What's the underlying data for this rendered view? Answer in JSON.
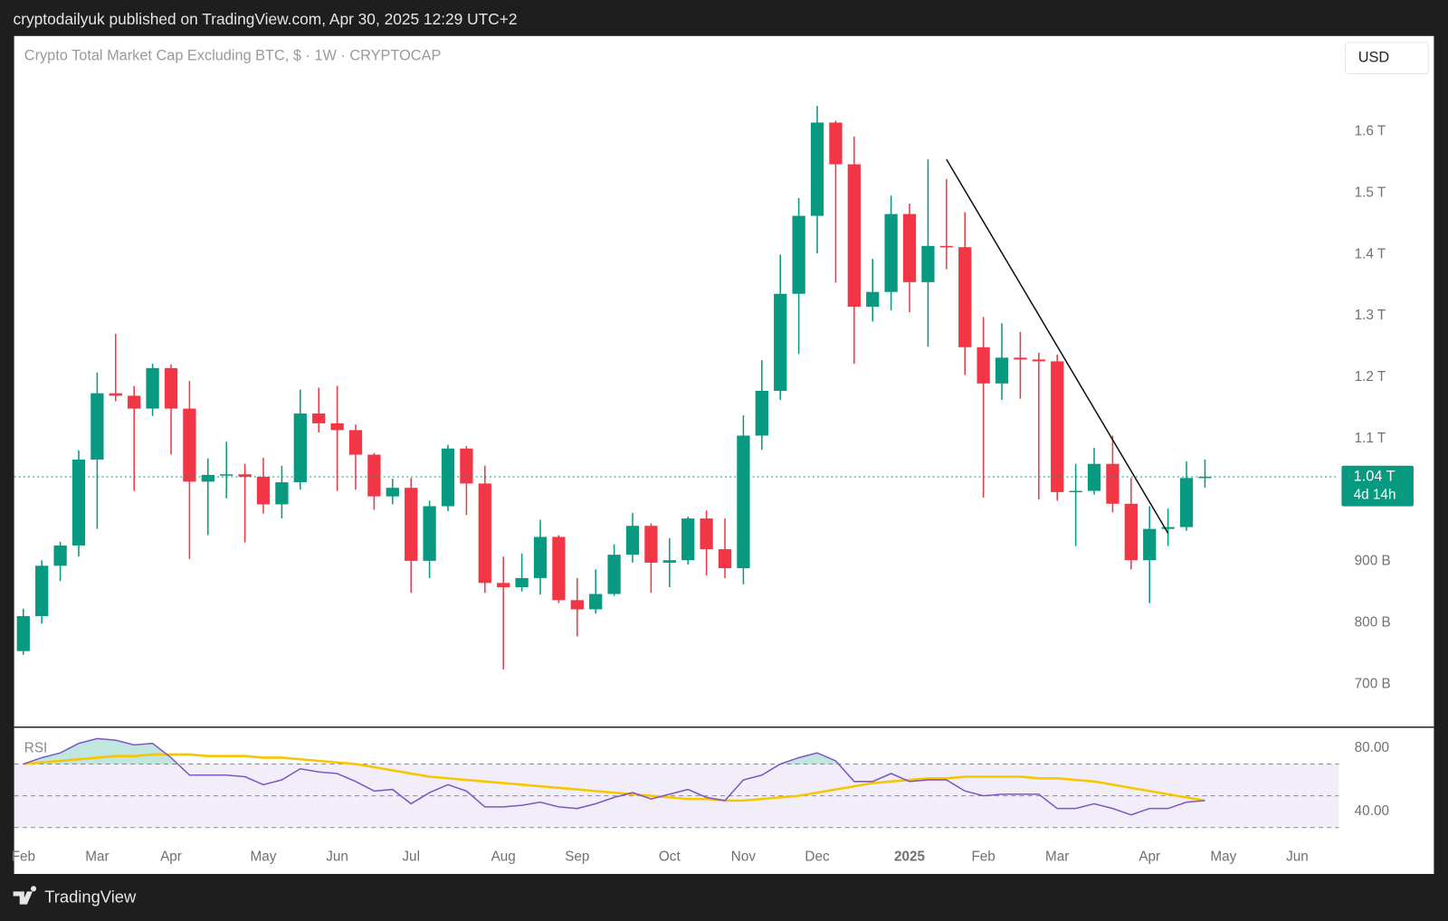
{
  "header": "cryptodailyuk published on TradingView.com, Apr 30, 2025 12:29 UTC+2",
  "footer": "TradingView",
  "chart_data": {
    "type": "candlestick",
    "title": "Crypto Total Market Cap Excluding BTC, $ · 1W · CRYPTOCAP",
    "currency_button": "USD",
    "categories": [
      "Feb",
      null,
      null,
      null,
      "Mar",
      null,
      null,
      null,
      "Apr",
      null,
      null,
      null,
      null,
      "May",
      null,
      null,
      null,
      "Jun",
      null,
      null,
      null,
      "Jul",
      null,
      null,
      null,
      null,
      "Aug",
      null,
      null,
      null,
      "Sep",
      null,
      null,
      null,
      null,
      "Oct",
      null,
      null,
      null,
      "Nov",
      null,
      null,
      null,
      "Dec",
      null,
      null,
      null,
      null,
      "2025",
      null,
      null,
      null,
      "Feb",
      null,
      null,
      null,
      "Mar",
      null,
      null,
      null,
      null,
      "Apr",
      null,
      null,
      null,
      "May",
      null,
      null,
      null,
      "Jun"
    ],
    "open": [
      754,
      811,
      893,
      926,
      1066,
      1174,
      1170,
      1149,
      1215,
      1149,
      1030,
      1041,
      1042,
      1038,
      993,
      1029,
      1141,
      1125,
      1114,
      1074,
      1006,
      1020,
      901,
      990,
      1084,
      1027,
      865,
      858,
      873,
      940,
      837,
      822,
      847,
      911,
      958,
      898,
      902,
      970,
      920,
      889,
      1105,
      1178,
      1336,
      1463,
      1615,
      1547,
      1315,
      1339,
      1466,
      1355,
      1414,
      1412,
      1249,
      1190,
      1232,
      1229,
      1226,
      1013,
      1015,
      1059,
      994,
      902,
      953,
      956,
      1036,
      null,
      null,
      null,
      null,
      null
    ],
    "high": [
      823,
      902,
      932,
      1081,
      1208,
      1271,
      1186,
      1222,
      1221,
      1194,
      1068,
      1095,
      1059,
      1069,
      1056,
      1180,
      1183,
      1186,
      1123,
      1077,
      1035,
      1036,
      999,
      1090,
      1088,
      1056,
      908,
      913,
      968,
      943,
      873,
      887,
      928,
      979,
      962,
      938,
      973,
      983,
      970,
      1138,
      1228,
      1400,
      1492,
      1642,
      1618,
      1592,
      1393,
      1496,
      1483,
      1555,
      1523,
      1469,
      1298,
      1288,
      1274,
      1240,
      1237,
      1059,
      1085,
      1105,
      1036,
      990,
      986,
      1063,
      1066,
      null,
      null,
      null,
      null,
      null
    ],
    "low": [
      748,
      799,
      868,
      908,
      953,
      1161,
      1015,
      1137,
      1074,
      904,
      943,
      1003,
      931,
      978,
      970,
      1017,
      1110,
      1015,
      1017,
      984,
      993,
      849,
      873,
      982,
      976,
      849,
      724,
      851,
      846,
      832,
      778,
      815,
      844,
      898,
      849,
      858,
      895,
      877,
      873,
      863,
      1082,
      1163,
      1238,
      1402,
      1354,
      1222,
      1291,
      1309,
      1306,
      1250,
      1376,
      1204,
      1004,
      1163,
      1165,
      1001,
      999,
      925,
      1009,
      980,
      887,
      832,
      925,
      950,
      1020,
      null,
      null,
      null,
      null,
      null
    ],
    "close": [
      811,
      893,
      926,
      1066,
      1174,
      1170,
      1149,
      1215,
      1149,
      1030,
      1041,
      1042,
      1038,
      993,
      1029,
      1141,
      1125,
      1114,
      1074,
      1006,
      1020,
      901,
      990,
      1084,
      1027,
      865,
      858,
      873,
      940,
      837,
      822,
      847,
      911,
      958,
      898,
      902,
      970,
      920,
      889,
      1105,
      1178,
      1336,
      1463,
      1615,
      1547,
      1315,
      1339,
      1466,
      1355,
      1414,
      1412,
      1249,
      1190,
      1232,
      1229,
      1226,
      1013,
      1015,
      1059,
      994,
      902,
      953,
      956,
      1036,
      1038,
      null,
      null,
      null,
      null,
      null
    ],
    "up_color": "#089981",
    "down_color": "#f23645",
    "ylim": [
      630,
      1756
    ],
    "yticks": [
      {
        "value": 700,
        "label": "700 B"
      },
      {
        "value": 800,
        "label": "800 B"
      },
      {
        "value": 900,
        "label": "900 B"
      },
      {
        "value": 1100,
        "label": "1.1 T"
      },
      {
        "value": 1200,
        "label": "1.2 T"
      },
      {
        "value": 1300,
        "label": "1.3 T"
      },
      {
        "value": 1400,
        "label": "1.4 T"
      },
      {
        "value": 1500,
        "label": "1.5 T"
      },
      {
        "value": 1600,
        "label": "1.6 T"
      }
    ],
    "last_price_label": "1.04 T",
    "countdown": "4d 14h",
    "trendline": [
      [
        50,
        1555
      ],
      [
        62,
        946
      ]
    ],
    "rsi": {
      "name": "RSI",
      "values": [
        70,
        74,
        77,
        83,
        86,
        85,
        82,
        83,
        74,
        63,
        63,
        63,
        62,
        57,
        60,
        67,
        65,
        64,
        59,
        53,
        54,
        45,
        52,
        57,
        53,
        43,
        43,
        44,
        46,
        43,
        42,
        45,
        49,
        52,
        48,
        51,
        54,
        49,
        47,
        60,
        63,
        70,
        74,
        77,
        72,
        59,
        59,
        64,
        59,
        60,
        60,
        53,
        50,
        51,
        51,
        51,
        42,
        42,
        45,
        42,
        38,
        42,
        42,
        46,
        47,
        null,
        null,
        null,
        null,
        null
      ],
      "ma_values": [
        70,
        71,
        72,
        73,
        74,
        75,
        75,
        76,
        76,
        76,
        75,
        75,
        75,
        74,
        74,
        73,
        72,
        71,
        70,
        68,
        66,
        64,
        62,
        61,
        60,
        59,
        58,
        57,
        56,
        55,
        54,
        53,
        52,
        51,
        50,
        49,
        48,
        48,
        47,
        47,
        48,
        49,
        50,
        52,
        54,
        56,
        58,
        59,
        60,
        61,
        61,
        62,
        62,
        62,
        62,
        61,
        61,
        60,
        59,
        57,
        55,
        53,
        51,
        49,
        47,
        null,
        null,
        null,
        null,
        null
      ],
      "color": "#7e57c2",
      "ma_color": "#f7c600",
      "ylim": [
        20,
        92
      ],
      "yticks": [
        {
          "value": 40,
          "label": "40.00"
        },
        {
          "value": 80,
          "label": "80.00"
        }
      ],
      "levels": [
        70,
        50,
        30
      ]
    }
  }
}
